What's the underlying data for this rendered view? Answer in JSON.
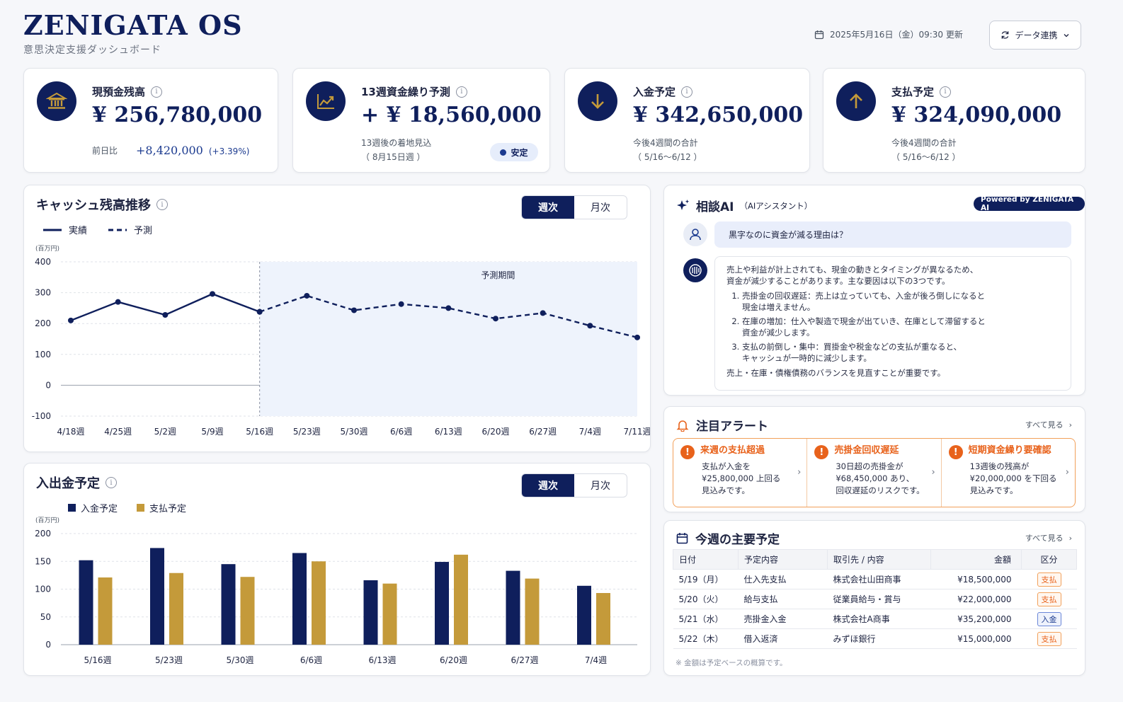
{
  "app": {
    "title": "ZENIGATA OS",
    "subtitle": "意思決定支援ダッシュボード",
    "updated": "2025年5月16日（金）09:30 更新",
    "sync_button": "データ連携"
  },
  "kpis": {
    "cash": {
      "label": "現預金残高",
      "value": "¥ 256,780,000",
      "compare_label": "前日比",
      "compare_value": "+8,420,000",
      "compare_pct": "(+3.39%)"
    },
    "forecast": {
      "label": "13週資金繰り予測",
      "value": "+ ¥ 18,560,000",
      "note_line1": "13週後の着地見込",
      "note_line2": "（ 8月15日週 ）",
      "badge": "安定"
    },
    "inflow": {
      "label": "入金予定",
      "value": "¥ 342,650,000",
      "note_line1": "今後4週間の合計",
      "note_line2": "（ 5/16〜6/12 ）"
    },
    "outflow": {
      "label": "支払予定",
      "value": "¥ 324,090,000",
      "note_line1": "今後4週間の合計",
      "note_line2": "（ 5/16〜6/12 ）"
    }
  },
  "cash_chart_panel": {
    "title": "キャッシュ残高推移",
    "toggle": [
      "週次",
      "月次"
    ],
    "legend_actual": "実績",
    "legend_forecast": "予測",
    "unit": "(百万円)",
    "forecast_region_label": "予測期間"
  },
  "flow_chart_panel": {
    "title": "入出金予定",
    "toggle": [
      "週次",
      "月次"
    ],
    "legend_in": "入金予定",
    "legend_out": "支払予定",
    "unit": "(百万円)"
  },
  "ai": {
    "title": "相談AI",
    "subtitle": "（AIアシスタント）",
    "powered_by": "Powered by ZENIGATA AI",
    "question": "黒字なのに資金が減る理由は？",
    "answer_intro_1": "売上や利益が計上されても、現金の動きとタイミングが異なるため、",
    "answer_intro_2": "資金が減少することがあります。主な要因は以下の3つです。",
    "points": [
      {
        "l1": "売掛金の回収遅延：売上は立っていても、入金が後ろ倒しになると",
        "l2": "現金は増えません。"
      },
      {
        "l1": "在庫の増加：仕入や製造で現金が出ていき、在庫として滞留すると",
        "l2": "資金が減少します。"
      },
      {
        "l1": "支払の前倒し・集中：買掛金や税金などの支払が重なると、",
        "l2": "キャッシュが一時的に減少します。"
      }
    ],
    "answer_outro": "売上・在庫・債権債務のバランスを見直すことが重要です。"
  },
  "alerts": {
    "title": "注目アラート",
    "see_all": "すべて見る",
    "items": [
      {
        "title": "来週の支払超過",
        "l1": "支払が入金を",
        "l2": "¥25,800,000 上回る",
        "l3": "見込みです。"
      },
      {
        "title": "売掛金回収遅延",
        "l1": "30日超の売掛金が",
        "l2": "¥68,450,000 あり、",
        "l3": "回収遅延のリスクです。"
      },
      {
        "title": "短期資金繰り要確認",
        "l1": "13週後の残高が",
        "l2": "¥20,000,000 を下回る",
        "l3": "見込みです。"
      }
    ]
  },
  "schedule": {
    "title": "今週の主要予定",
    "see_all": "すべて見る",
    "headers": [
      "日付",
      "予定内容",
      "取引先 / 内容",
      "金額",
      "区分"
    ],
    "rows": [
      {
        "date": "5/19（月）",
        "item": "仕入先支払",
        "party": "株式会社山田商事",
        "amount": "¥18,500,000",
        "type": "支払",
        "kind": "out"
      },
      {
        "date": "5/20（火）",
        "item": "給与支払",
        "party": "従業員給与・賞与",
        "amount": "¥22,000,000",
        "type": "支払",
        "kind": "out"
      },
      {
        "date": "5/21（水）",
        "item": "売掛金入金",
        "party": "株式会社A商事",
        "amount": "¥35,200,000",
        "type": "入金",
        "kind": "in"
      },
      {
        "date": "5/22（木）",
        "item": "借入返済",
        "party": "みずほ銀行",
        "amount": "¥15,000,000",
        "type": "支払",
        "kind": "out"
      }
    ],
    "footnote": "※ 金額は予定ベースの概算です。"
  },
  "chart_data": [
    {
      "type": "line",
      "title": "キャッシュ残高推移",
      "ylabel": "(百万円)",
      "categories": [
        "4/18週",
        "4/25週",
        "5/2週",
        "5/9週",
        "5/16週",
        "5/23週",
        "5/30週",
        "6/6週",
        "6/13週",
        "6/20週",
        "6/27週",
        "7/4週",
        "7/11週"
      ],
      "yticks": [
        400,
        300,
        200,
        100,
        0,
        -100
      ],
      "ylim": [
        -100,
        400
      ],
      "forecast_start_index": 4,
      "series": [
        {
          "name": "実績",
          "style": "solid",
          "x": [
            "4/18週",
            "4/25週",
            "5/2週",
            "5/9週",
            "5/16週"
          ],
          "values": [
            210,
            270,
            228,
            296,
            238
          ]
        },
        {
          "name": "予測",
          "style": "dashed",
          "x": [
            "5/16週",
            "5/23週",
            "5/30週",
            "6/6週",
            "6/13週",
            "6/20週",
            "6/27週",
            "7/4週",
            "7/11週"
          ],
          "values": [
            238,
            290,
            243,
            263,
            250,
            216,
            234,
            193,
            155
          ]
        }
      ],
      "colors": {
        "line": "#0f1f5c",
        "forecast_bg": "#eef3fc"
      }
    },
    {
      "type": "bar",
      "title": "入出金予定",
      "ylabel": "(百万円)",
      "categories": [
        "5/16週",
        "5/23週",
        "5/30週",
        "6/6週",
        "6/13週",
        "6/20週",
        "6/27週",
        "7/4週"
      ],
      "yticks": [
        200,
        150,
        100,
        50,
        0
      ],
      "ylim": [
        0,
        200
      ],
      "series": [
        {
          "name": "入金予定",
          "color": "#0f1f5c",
          "values": [
            152,
            174,
            145,
            165,
            116,
            149,
            133,
            106
          ]
        },
        {
          "name": "支払予定",
          "color": "#c49a3a",
          "values": [
            121,
            129,
            122,
            150,
            110,
            162,
            119,
            93
          ]
        }
      ]
    }
  ]
}
